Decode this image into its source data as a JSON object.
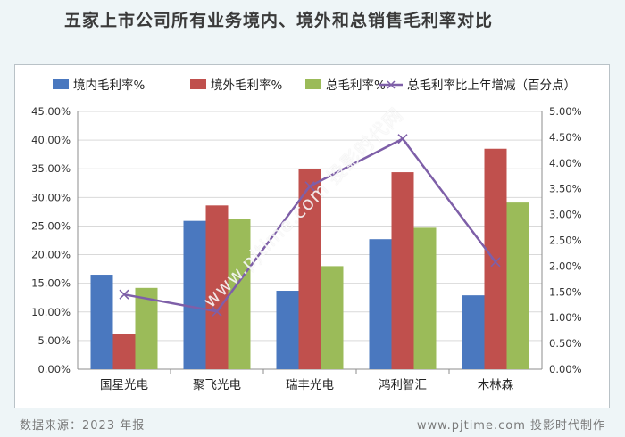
{
  "title": "五家上市公司所有业务境内、境外和总销售毛利率对比",
  "footer": {
    "source": "数据来源：2023 年报",
    "credit": "www.pjtime.com 投影时代制作"
  },
  "watermark": "www.pjtime.com 投影时代网",
  "colors": {
    "domestic": "#4a78bf",
    "overseas": "#c0504d",
    "total": "#9bbb59",
    "change": "#7e5fa8",
    "grid": "#d9d9d9",
    "axis": "#8c8c8c"
  },
  "chart_data": {
    "type": "bar",
    "categories": [
      "国星光电",
      "聚飞光电",
      "瑞丰光电",
      "鸿利智汇",
      "木林森"
    ],
    "series": [
      {
        "name": "境内毛利率%",
        "axis": "left",
        "values": [
          16.5,
          25.9,
          13.7,
          22.7,
          12.9
        ]
      },
      {
        "name": "境外毛利率%",
        "axis": "left",
        "values": [
          6.2,
          28.6,
          35.0,
          34.4,
          38.5
        ]
      },
      {
        "name": "总毛利率%",
        "axis": "left",
        "values": [
          14.2,
          26.3,
          18.0,
          24.7,
          29.1
        ]
      },
      {
        "name": "总毛利率比上年增减（百分点）",
        "axis": "right",
        "type": "line",
        "values": [
          1.45,
          1.12,
          3.55,
          4.47,
          2.08
        ]
      }
    ],
    "ylim": [
      0,
      45
    ],
    "y2lim": [
      0,
      5
    ],
    "yticks": [
      "0.00%",
      "5.00%",
      "10.00%",
      "15.00%",
      "20.00%",
      "25.00%",
      "30.00%",
      "35.00%",
      "40.00%",
      "45.00%"
    ],
    "y2ticks": [
      "0.00%",
      "0.50%",
      "1.00%",
      "1.50%",
      "2.00%",
      "2.50%",
      "3.00%",
      "3.50%",
      "4.00%",
      "4.50%",
      "5.00%"
    ],
    "grid": true,
    "legend": "top"
  }
}
